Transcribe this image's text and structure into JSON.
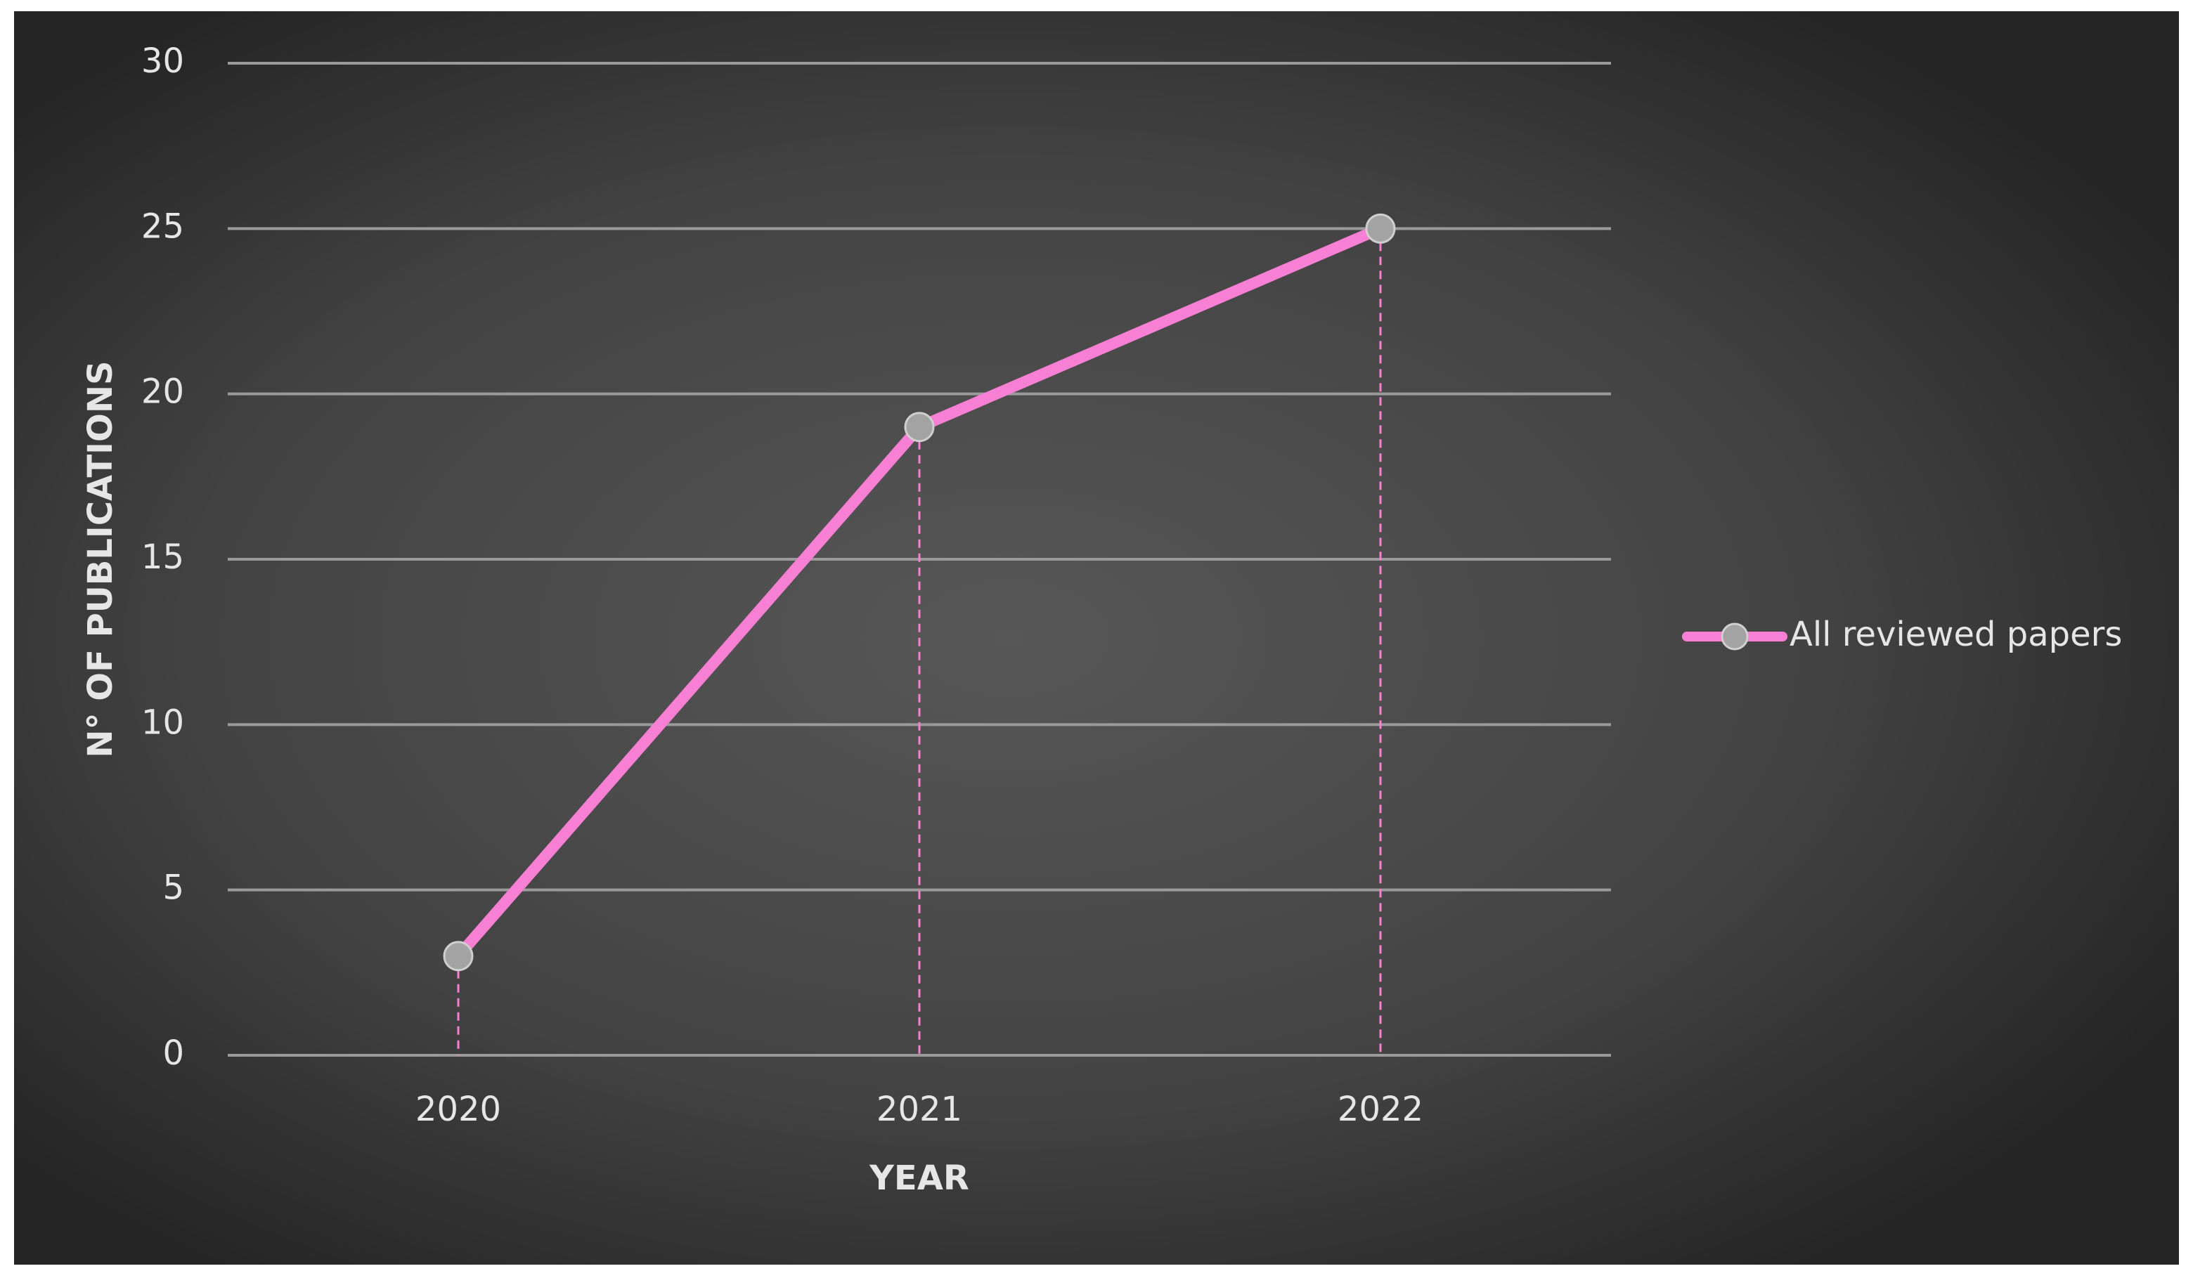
{
  "chart_data": {
    "type": "line",
    "x_label": "YEAR",
    "y_label": "N° OF PUBLICATIONS",
    "categories": [
      "2020",
      "2021",
      "2022"
    ],
    "series": [
      {
        "name": "All reviewed papers",
        "color": "#f77fd4",
        "marker_color": "#a3a3a3",
        "values": [
          3,
          19,
          25
        ]
      }
    ],
    "ylim": [
      0,
      30
    ],
    "yticks": [
      0,
      5,
      10,
      15,
      20,
      25,
      30
    ],
    "grid": true,
    "drop_lines": true,
    "legend": "right"
  }
}
